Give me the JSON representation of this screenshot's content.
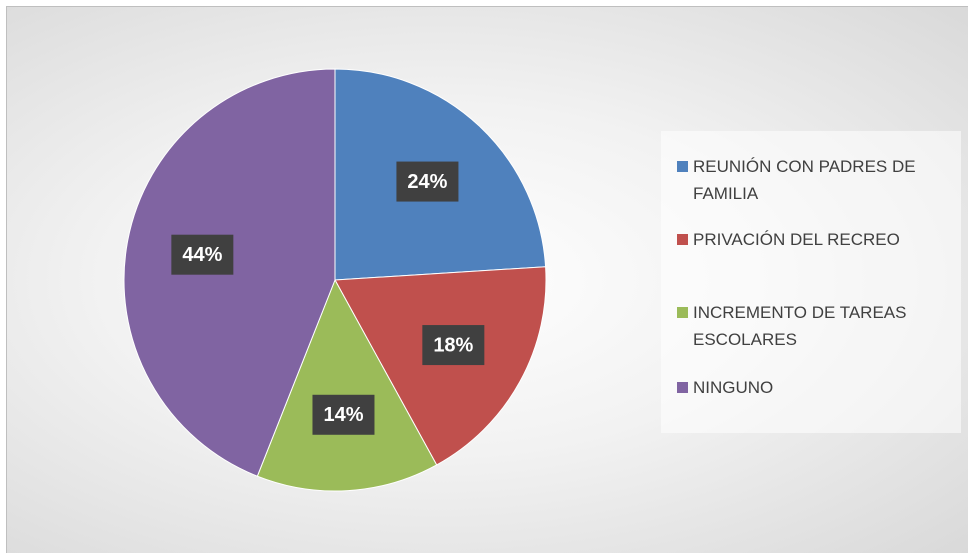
{
  "chart_data": {
    "type": "pie",
    "categories": [
      "REUNIÓN CON PADRES DE FAMILIA",
      "PRIVACIÓN DEL RECREO",
      "INCREMENTO DE TAREAS ESCOLARES",
      "NINGUNO"
    ],
    "values": [
      24,
      18,
      14,
      44
    ],
    "value_labels": [
      "24%",
      "18%",
      "14%",
      "44%"
    ],
    "colors": [
      "#4f81bd",
      "#c0504d",
      "#9bbb59",
      "#8064a2"
    ],
    "legend": "right"
  }
}
